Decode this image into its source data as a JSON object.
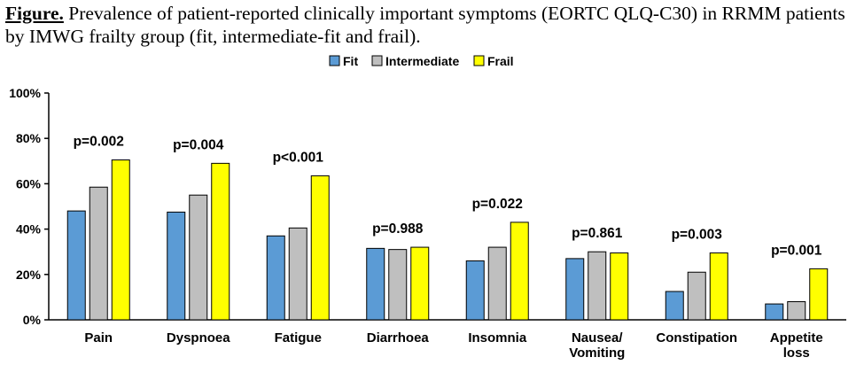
{
  "caption": {
    "label": "Figure.",
    "text": " Prevalence of patient-reported clinically important symptoms (EORTC QLQ-C30) in RRMM patients by IMWG frailty group (fit, intermediate-fit and frail)."
  },
  "chart_data": {
    "type": "bar",
    "categories": [
      "Pain",
      "Dyspnoea",
      "Fatigue",
      "Diarrhoea",
      "Insomnia",
      "Nausea/\nVomiting",
      "Constipation",
      "Appetite\nloss"
    ],
    "series": [
      {
        "name": "Fit",
        "color": "#5b9bd5",
        "values": [
          48,
          47.5,
          37,
          31.5,
          26,
          27,
          12.5,
          7
        ]
      },
      {
        "name": "Intermediate",
        "color": "#bfbfbf",
        "values": [
          58.5,
          55,
          40.5,
          31,
          32,
          30,
          21,
          8
        ]
      },
      {
        "name": "Frail",
        "color": "#ffff00",
        "values": [
          70.5,
          69,
          63.5,
          32,
          43,
          29.5,
          29.5,
          22.5
        ]
      }
    ],
    "annotations": [
      "p=0.002",
      "p=0.004",
      "p<0.001",
      "p=0.988",
      "p=0.022",
      "p=0.861",
      "p=0.003",
      "p=0.001"
    ],
    "yticks": [
      "0%",
      "20%",
      "40%",
      "60%",
      "80%",
      "100%"
    ],
    "ylim": [
      0,
      100
    ],
    "legend_position": "top-center",
    "grid": false
  }
}
